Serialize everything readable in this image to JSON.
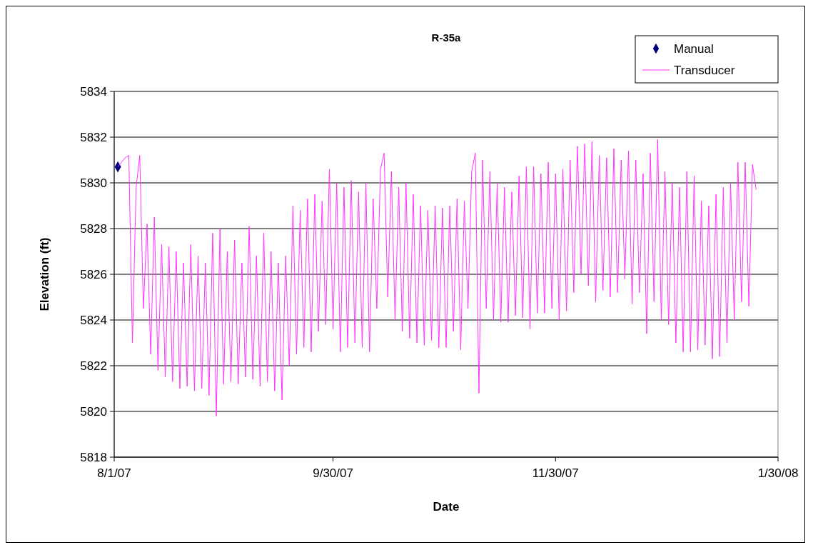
{
  "chart_data": {
    "type": "line",
    "title": "R-35a",
    "xlabel": "Date",
    "ylabel": "Elevation (ft)",
    "xlim": [
      "2007-08-01",
      "2008-01-30"
    ],
    "xticks": [
      {
        "value": "2007-08-01",
        "label": "8/1/07"
      },
      {
        "value": "2007-09-30",
        "label": "9/30/07"
      },
      {
        "value": "2007-11-30",
        "label": "11/30/07"
      },
      {
        "value": "2008-01-30",
        "label": "1/30/08"
      }
    ],
    "ylim": [
      5818,
      5834
    ],
    "yticks": [
      5818,
      5820,
      5822,
      5824,
      5826,
      5828,
      5830,
      5832,
      5834
    ],
    "grid": "y",
    "legend": "top right",
    "series": [
      {
        "name": "Manual",
        "type": "scatter",
        "marker": "diamond",
        "color": "#000080",
        "x": [
          "2007-08-02"
        ],
        "values": [
          5830.7
        ]
      },
      {
        "name": "Transducer",
        "marker": "none",
        "color": "#ff33ff",
        "x": [
          "2007-08-02",
          "2007-08-03",
          "2007-08-04",
          "2007-08-05",
          "2007-08-06",
          "2007-08-07",
          "2007-08-08",
          "2007-08-09",
          "2007-08-10",
          "2007-08-11",
          "2007-08-12",
          "2007-08-13",
          "2007-08-14",
          "2007-08-15",
          "2007-08-16",
          "2007-08-17",
          "2007-08-18",
          "2007-08-19",
          "2007-08-20",
          "2007-08-21",
          "2007-08-22",
          "2007-08-23",
          "2007-08-24",
          "2007-08-25",
          "2007-08-26",
          "2007-08-27",
          "2007-08-28",
          "2007-08-29",
          "2007-08-30",
          "2007-08-31",
          "2007-09-01",
          "2007-09-02",
          "2007-09-03",
          "2007-09-04",
          "2007-09-05",
          "2007-09-06",
          "2007-09-07",
          "2007-09-08",
          "2007-09-09",
          "2007-09-10",
          "2007-09-11",
          "2007-09-12",
          "2007-09-13",
          "2007-09-14",
          "2007-09-15",
          "2007-09-16",
          "2007-09-17",
          "2007-09-18",
          "2007-09-19",
          "2007-09-20",
          "2007-09-21",
          "2007-09-22",
          "2007-09-23",
          "2007-09-24",
          "2007-09-25",
          "2007-09-26",
          "2007-09-27",
          "2007-09-28",
          "2007-09-29",
          "2007-09-30",
          "2007-10-01",
          "2007-10-02",
          "2007-10-03",
          "2007-10-04",
          "2007-10-05",
          "2007-10-06",
          "2007-10-07",
          "2007-10-08",
          "2007-10-09",
          "2007-10-10",
          "2007-10-11",
          "2007-10-12",
          "2007-10-13",
          "2007-10-14",
          "2007-10-15",
          "2007-10-16",
          "2007-10-17",
          "2007-10-18",
          "2007-10-19",
          "2007-10-20",
          "2007-10-21",
          "2007-10-22",
          "2007-10-23",
          "2007-10-24",
          "2007-10-25",
          "2007-10-26",
          "2007-10-27",
          "2007-10-28",
          "2007-10-29",
          "2007-10-30",
          "2007-10-31",
          "2007-11-01",
          "2007-11-02",
          "2007-11-03",
          "2007-11-04",
          "2007-11-05",
          "2007-11-06",
          "2007-11-07",
          "2007-11-08",
          "2007-11-09",
          "2007-11-10",
          "2007-11-11",
          "2007-11-12",
          "2007-11-13",
          "2007-11-14",
          "2007-11-15",
          "2007-11-16",
          "2007-11-17",
          "2007-11-18",
          "2007-11-19",
          "2007-11-20",
          "2007-11-21",
          "2007-11-22",
          "2007-11-23",
          "2007-11-24",
          "2007-11-25",
          "2007-11-26",
          "2007-11-27",
          "2007-11-28",
          "2007-11-29",
          "2007-11-30",
          "2007-12-01",
          "2007-12-02",
          "2007-12-03",
          "2007-12-04",
          "2007-12-05",
          "2007-12-06",
          "2007-12-07",
          "2007-12-08",
          "2007-12-09",
          "2007-12-10",
          "2007-12-11",
          "2007-12-12",
          "2007-12-13",
          "2007-12-14",
          "2007-12-15",
          "2007-12-16",
          "2007-12-17",
          "2007-12-18",
          "2007-12-19",
          "2007-12-20",
          "2007-12-21",
          "2007-12-22",
          "2007-12-23",
          "2007-12-24",
          "2007-12-25",
          "2007-12-26",
          "2007-12-27",
          "2007-12-28",
          "2007-12-29",
          "2007-12-30",
          "2007-12-31",
          "2008-01-01",
          "2008-01-02",
          "2008-01-03",
          "2008-01-04",
          "2008-01-05",
          "2008-01-06",
          "2008-01-07",
          "2008-01-08",
          "2008-01-09",
          "2008-01-10",
          "2008-01-11",
          "2008-01-12",
          "2008-01-13",
          "2008-01-14",
          "2008-01-15",
          "2008-01-16",
          "2008-01-17",
          "2008-01-18",
          "2008-01-19",
          "2008-01-20",
          "2008-01-21",
          "2008-01-22",
          "2008-01-23",
          "2008-01-24"
        ],
        "values": [
          5830.7,
          5830.9,
          5831.1,
          5831.2,
          5823.0,
          5829.8,
          5831.2,
          5824.5,
          5828.2,
          5822.5,
          5828.5,
          5821.8,
          5827.3,
          5821.5,
          5827.2,
          5821.3,
          5827.0,
          5821.0,
          5826.5,
          5821.1,
          5827.3,
          5820.9,
          5826.8,
          5821.0,
          5826.5,
          5820.7,
          5827.8,
          5819.8,
          5828.0,
          5821.2,
          5827.0,
          5821.3,
          5827.5,
          5821.2,
          5826.5,
          5821.5,
          5828.1,
          5821.4,
          5826.8,
          5821.1,
          5827.8,
          5821.3,
          5827.0,
          5820.9,
          5826.5,
          5820.5,
          5826.8,
          5822.0,
          5829.0,
          5822.5,
          5828.8,
          5822.8,
          5829.3,
          5822.6,
          5829.5,
          5823.5,
          5829.2,
          5823.8,
          5830.6,
          5823.6,
          5830.0,
          5822.6,
          5829.8,
          5822.8,
          5830.1,
          5823.0,
          5829.6,
          5822.8,
          5830.0,
          5822.6,
          5829.3,
          5824.5,
          5830.6,
          5831.3,
          5825.0,
          5830.5,
          5824.0,
          5829.8,
          5823.5,
          5830.0,
          5823.2,
          5829.5,
          5823.0,
          5829.0,
          5822.9,
          5828.8,
          5823.1,
          5829.0,
          5822.8,
          5828.9,
          5822.8,
          5829.0,
          5823.5,
          5829.3,
          5822.7,
          5829.2,
          5824.5,
          5830.5,
          5831.3,
          5820.8,
          5831.0,
          5824.5,
          5830.5,
          5824.0,
          5830.0,
          5823.9,
          5829.8,
          5823.9,
          5829.6,
          5824.2,
          5830.3,
          5824.1,
          5830.7,
          5823.6,
          5830.7,
          5824.3,
          5830.4,
          5824.3,
          5830.9,
          5824.5,
          5830.4,
          5824.0,
          5830.6,
          5824.4,
          5831.0,
          5825.2,
          5831.6,
          5826.0,
          5831.7,
          5825.5,
          5831.8,
          5824.8,
          5831.2,
          5825.3,
          5831.1,
          5825.0,
          5831.5,
          5825.2,
          5831.0,
          5825.8,
          5831.4,
          5824.7,
          5831.0,
          5825.2,
          5830.4,
          5823.4,
          5831.3,
          5824.8,
          5831.9,
          5824.0,
          5830.5,
          5823.8,
          5830.0,
          5823.0,
          5829.8,
          5822.6,
          5830.5,
          5822.6,
          5830.3,
          5822.7,
          5829.2,
          5822.9,
          5829.0,
          5822.3,
          5829.5,
          5822.4,
          5829.8,
          5823.0,
          5830.0,
          5824.0,
          5830.9,
          5824.8,
          5830.9,
          5824.6,
          5830.8,
          5829.7
        ]
      }
    ]
  }
}
